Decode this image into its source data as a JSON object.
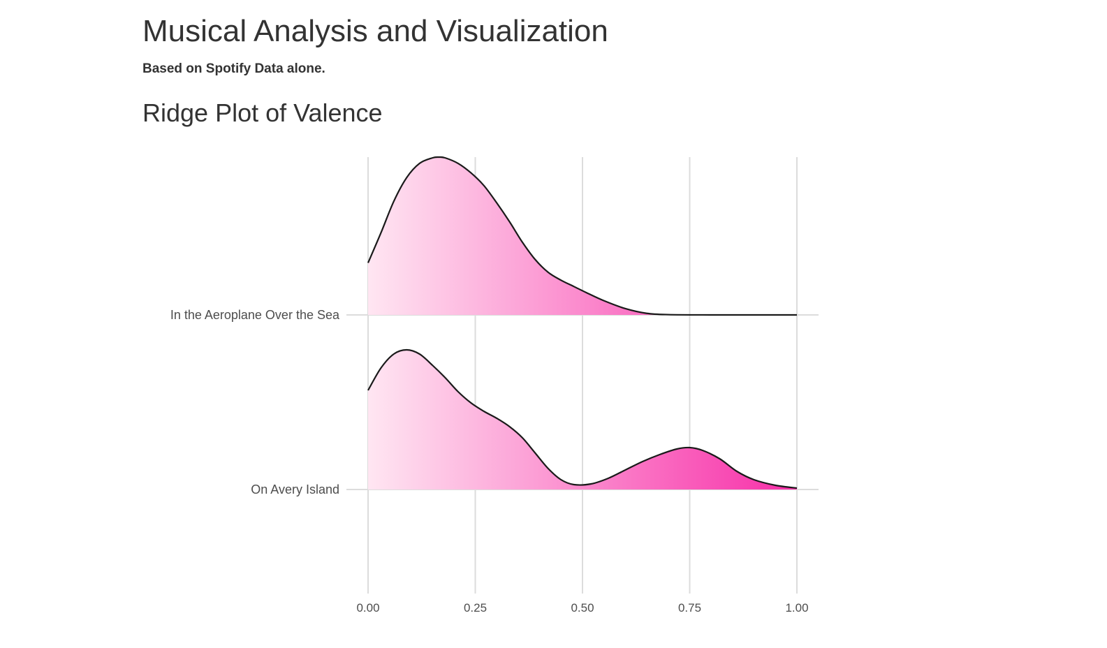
{
  "page": {
    "title": "Musical Analysis and Visualization",
    "subtitle": "Based on Spotify Data alone.",
    "section_title": "Ridge Plot of Valence"
  },
  "chart_data": {
    "type": "ridgeline",
    "title": "Ridge Plot of Valence",
    "xlabel": "",
    "ylabel": "",
    "xlim": [
      0,
      1
    ],
    "x_ticks": [
      "0.00",
      "0.25",
      "0.50",
      "0.75",
      "1.00"
    ],
    "x_tick_values": [
      0,
      0.25,
      0.5,
      0.75,
      1.0
    ],
    "grid": true,
    "legend": "none",
    "fill_gradient": {
      "from_color": "#ffe6f2",
      "to_color": "#f72ea8",
      "along": "x"
    },
    "outline_color": "#1a1a1a",
    "series": [
      {
        "category": "In the Aeroplane Over the Sea",
        "x": [
          0.0,
          0.03,
          0.06,
          0.09,
          0.12,
          0.15,
          0.165,
          0.18,
          0.21,
          0.24,
          0.27,
          0.3,
          0.33,
          0.36,
          0.39,
          0.42,
          0.45,
          0.48,
          0.51,
          0.55,
          0.6,
          0.65,
          0.7,
          0.8,
          0.9,
          1.0
        ],
        "density": [
          0.33,
          0.52,
          0.72,
          0.87,
          0.96,
          0.995,
          1.0,
          0.995,
          0.96,
          0.9,
          0.82,
          0.71,
          0.59,
          0.46,
          0.35,
          0.27,
          0.22,
          0.18,
          0.14,
          0.09,
          0.04,
          0.01,
          0.002,
          0.0,
          0.0,
          0.0
        ]
      },
      {
        "category": "On Avery Island",
        "x": [
          0.0,
          0.03,
          0.06,
          0.09,
          0.12,
          0.15,
          0.18,
          0.21,
          0.24,
          0.27,
          0.3,
          0.33,
          0.36,
          0.39,
          0.42,
          0.45,
          0.48,
          0.52,
          0.56,
          0.6,
          0.64,
          0.68,
          0.72,
          0.75,
          0.78,
          0.82,
          0.86,
          0.9,
          0.95,
          1.0
        ],
        "density": [
          0.71,
          0.87,
          0.97,
          1.0,
          0.97,
          0.89,
          0.8,
          0.7,
          0.62,
          0.56,
          0.51,
          0.45,
          0.37,
          0.26,
          0.15,
          0.07,
          0.035,
          0.04,
          0.08,
          0.14,
          0.2,
          0.25,
          0.29,
          0.3,
          0.28,
          0.22,
          0.13,
          0.07,
          0.03,
          0.01
        ]
      }
    ]
  }
}
